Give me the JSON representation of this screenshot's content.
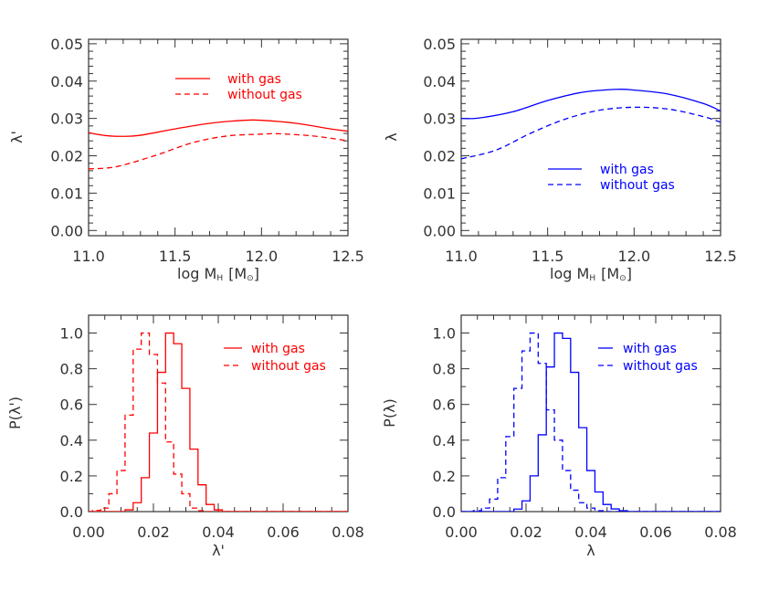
{
  "chart_data": [
    {
      "type": "line",
      "panel": "top-left",
      "xlabel": "log M",
      "xlabel_sub": "H",
      "xlabel_unit": "[M",
      "xlabel_unit_sub": "⊙",
      "xlabel_unit_end": "]",
      "ylabel": "λ'",
      "xlim": [
        11.0,
        12.5
      ],
      "ylim": [
        -0.0014,
        0.0512
      ],
      "xticks": [
        "11.0",
        "11.5",
        "12.0",
        "12.5"
      ],
      "yticks": [
        "0.00",
        "0.01",
        "0.02",
        "0.03",
        "0.04",
        "0.05"
      ],
      "color": "#ff0000",
      "legend_placement": "top-center",
      "series": [
        {
          "name": "with gas",
          "style": "solid",
          "x": [
            11.0,
            11.1,
            11.2,
            11.3,
            11.5,
            11.7,
            11.9,
            12.0,
            12.2,
            12.4,
            12.5
          ],
          "y": [
            0.0262,
            0.0254,
            0.0252,
            0.0255,
            0.0272,
            0.0287,
            0.0295,
            0.0295,
            0.0287,
            0.0272,
            0.0266
          ]
        },
        {
          "name": "without gas",
          "style": "dashed",
          "x": [
            11.0,
            11.1,
            11.2,
            11.4,
            11.6,
            11.8,
            12.0,
            12.1,
            12.3,
            12.5
          ],
          "y": [
            0.0165,
            0.0167,
            0.0175,
            0.0203,
            0.0235,
            0.0253,
            0.0258,
            0.0259,
            0.0253,
            0.024
          ]
        }
      ]
    },
    {
      "type": "line",
      "panel": "top-right",
      "xlabel": "log M",
      "xlabel_sub": "H",
      "xlabel_unit": "[M",
      "xlabel_unit_sub": "⊙",
      "xlabel_unit_end": "]",
      "ylabel": "λ",
      "xlim": [
        11.0,
        12.5
      ],
      "ylim": [
        -0.0014,
        0.0512
      ],
      "xticks": [
        "11.0",
        "11.5",
        "12.0",
        "12.5"
      ],
      "yticks": [
        "0.00",
        "0.01",
        "0.02",
        "0.03",
        "0.04",
        "0.05"
      ],
      "color": "#0000ff",
      "legend_placement": "bottom-right",
      "series": [
        {
          "name": "with gas",
          "style": "solid",
          "x": [
            11.0,
            11.1,
            11.3,
            11.5,
            11.7,
            11.9,
            12.0,
            12.2,
            12.4,
            12.5
          ],
          "y": [
            0.03,
            0.0301,
            0.0318,
            0.0348,
            0.037,
            0.0378,
            0.0376,
            0.0365,
            0.034,
            0.032
          ]
        },
        {
          "name": "without gas",
          "style": "dashed",
          "x": [
            11.0,
            11.2,
            11.4,
            11.6,
            11.8,
            12.0,
            12.2,
            12.4,
            12.5
          ],
          "y": [
            0.0192,
            0.0215,
            0.026,
            0.0298,
            0.0322,
            0.033,
            0.0325,
            0.0305,
            0.029
          ]
        }
      ]
    },
    {
      "type": "histogram",
      "panel": "bottom-left",
      "xlabel": "λ'",
      "ylabel": "P(λ')",
      "xlim": [
        0.0,
        0.08
      ],
      "ylim": [
        0.0,
        1.1
      ],
      "xticks": [
        "0.00",
        "0.02",
        "0.04",
        "0.06",
        "0.08"
      ],
      "yticks": [
        "0.0",
        "0.2",
        "0.4",
        "0.6",
        "0.8",
        "1.0"
      ],
      "bin_width": 0.0025,
      "color": "#ff0000",
      "legend_placement": "top-right",
      "series": [
        {
          "name": "with gas",
          "style": "solid",
          "bin_centers": [
            0.0125,
            0.015,
            0.0175,
            0.02,
            0.0225,
            0.025,
            0.0275,
            0.03,
            0.0325,
            0.035,
            0.0375,
            0.04
          ],
          "values": [
            0.01,
            0.05,
            0.19,
            0.44,
            0.78,
            1.0,
            0.94,
            0.69,
            0.35,
            0.15,
            0.04,
            0.01
          ]
        },
        {
          "name": "without gas",
          "style": "dashed",
          "bin_centers": [
            0.0025,
            0.005,
            0.0075,
            0.01,
            0.0125,
            0.015,
            0.0175,
            0.02,
            0.0225,
            0.025,
            0.0275,
            0.03,
            0.0325,
            0.035
          ],
          "values": [
            0.007,
            0.02,
            0.1,
            0.23,
            0.54,
            0.91,
            1.0,
            0.88,
            0.72,
            0.39,
            0.21,
            0.1,
            0.02,
            0.005
          ]
        }
      ]
    },
    {
      "type": "histogram",
      "panel": "bottom-right",
      "xlabel": "λ",
      "ylabel": "P(λ)",
      "xlim": [
        0.0,
        0.08
      ],
      "ylim": [
        0.0,
        1.1
      ],
      "xticks": [
        "0.00",
        "0.02",
        "0.04",
        "0.06",
        "0.08"
      ],
      "yticks": [
        "0.0",
        "0.2",
        "0.4",
        "0.6",
        "0.8",
        "1.0"
      ],
      "bin_width": 0.0025,
      "color": "#0000ff",
      "legend_placement": "top-right",
      "series": [
        {
          "name": "with gas",
          "style": "solid",
          "bin_centers": [
            0.0175,
            0.02,
            0.0225,
            0.025,
            0.0275,
            0.03,
            0.0325,
            0.035,
            0.0375,
            0.04,
            0.0425,
            0.045,
            0.0475,
            0.05
          ],
          "values": [
            0.014,
            0.06,
            0.2,
            0.43,
            0.81,
            1.0,
            0.97,
            0.78,
            0.47,
            0.23,
            0.11,
            0.04,
            0.015,
            0.005
          ]
        },
        {
          "name": "without gas",
          "style": "dashed",
          "bin_centers": [
            0.005,
            0.0075,
            0.01,
            0.0125,
            0.015,
            0.0175,
            0.02,
            0.0225,
            0.025,
            0.0275,
            0.03,
            0.0325,
            0.035,
            0.0375,
            0.04,
            0.0425
          ],
          "values": [
            0.005,
            0.02,
            0.07,
            0.19,
            0.42,
            0.69,
            0.9,
            1.0,
            0.83,
            0.57,
            0.4,
            0.23,
            0.12,
            0.05,
            0.02,
            0.005
          ]
        }
      ]
    }
  ]
}
